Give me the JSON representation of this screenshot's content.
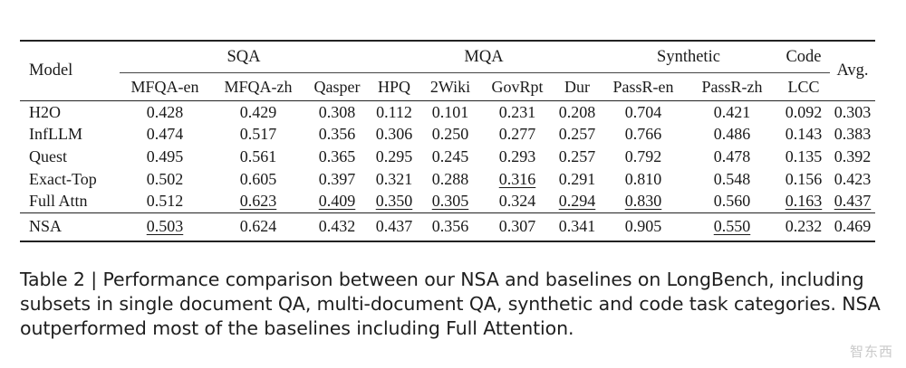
{
  "table": {
    "model_header": "Model",
    "avg_header": "Avg.",
    "groups": [
      {
        "label": "SQA",
        "cols": [
          "MFQA-en",
          "MFQA-zh",
          "Qasper"
        ]
      },
      {
        "label": "MQA",
        "cols": [
          "HPQ",
          "2Wiki",
          "GovRpt",
          "Dur"
        ]
      },
      {
        "label": "Synthetic",
        "cols": [
          "PassR-en",
          "PassR-zh"
        ]
      },
      {
        "label": "Code",
        "cols": [
          "LCC"
        ]
      }
    ],
    "rows": [
      {
        "model": "H2O",
        "values": [
          "0.428",
          "0.429",
          "0.308",
          "0.112",
          "0.101",
          "0.231",
          "0.208",
          "0.704",
          "0.421",
          "0.092",
          "0.303"
        ]
      },
      {
        "model": "InfLLM",
        "values": [
          "0.474",
          "0.517",
          "0.356",
          "0.306",
          "0.250",
          "0.277",
          "0.257",
          "0.766",
          "0.486",
          "0.143",
          "0.383"
        ]
      },
      {
        "model": "Quest",
        "values": [
          "0.495",
          "0.561",
          "0.365",
          "0.295",
          "0.245",
          "0.293",
          "0.257",
          "0.792",
          "0.478",
          "0.135",
          "0.392"
        ]
      },
      {
        "model": "Exact-Top",
        "values": [
          "0.502",
          "0.605",
          "0.397",
          "0.321",
          "0.288",
          "0.316",
          "0.291",
          "0.810",
          "0.548",
          "0.156",
          "0.423"
        ]
      },
      {
        "model": "Full Attn",
        "values": [
          "0.512",
          "0.623",
          "0.409",
          "0.350",
          "0.305",
          "0.324",
          "0.294",
          "0.830",
          "0.560",
          "0.163",
          "0.437"
        ]
      },
      {
        "model": "NSA",
        "values": [
          "0.503",
          "0.624",
          "0.432",
          "0.437",
          "0.356",
          "0.307",
          "0.341",
          "0.905",
          "0.550",
          "0.232",
          "0.469"
        ]
      }
    ]
  },
  "caption": "Table 2 | Performance comparison between our NSA and baselines on LongBench, including subsets in single document QA, multi-document QA, synthetic and code task categories. NSA outperformed most of the baselines including Full Attention.",
  "watermark": "智东西"
}
